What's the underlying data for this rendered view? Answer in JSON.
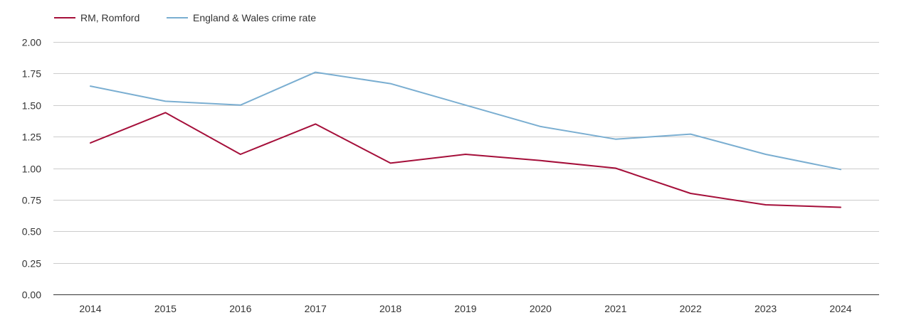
{
  "chart_data": {
    "type": "line",
    "title": "",
    "xlabel": "",
    "ylabel": "",
    "categories": [
      "2014",
      "2015",
      "2016",
      "2017",
      "2018",
      "2019",
      "2020",
      "2021",
      "2022",
      "2023",
      "2024"
    ],
    "y_ticks": [
      "0.00",
      "0.25",
      "0.50",
      "0.75",
      "1.00",
      "1.25",
      "1.50",
      "1.75",
      "2.00"
    ],
    "ylim": [
      0,
      2
    ],
    "grid": true,
    "legend_position": "top-left",
    "series": [
      {
        "name": "RM, Romford",
        "color": "#a50f3a",
        "values": [
          1.2,
          1.44,
          1.11,
          1.35,
          1.04,
          1.11,
          1.06,
          1.0,
          0.8,
          0.71,
          0.69
        ]
      },
      {
        "name": "England & Wales crime rate",
        "color": "#7aaed1",
        "values": [
          1.65,
          1.53,
          1.5,
          1.76,
          1.67,
          1.5,
          1.33,
          1.23,
          1.27,
          1.11,
          0.99
        ]
      }
    ]
  }
}
